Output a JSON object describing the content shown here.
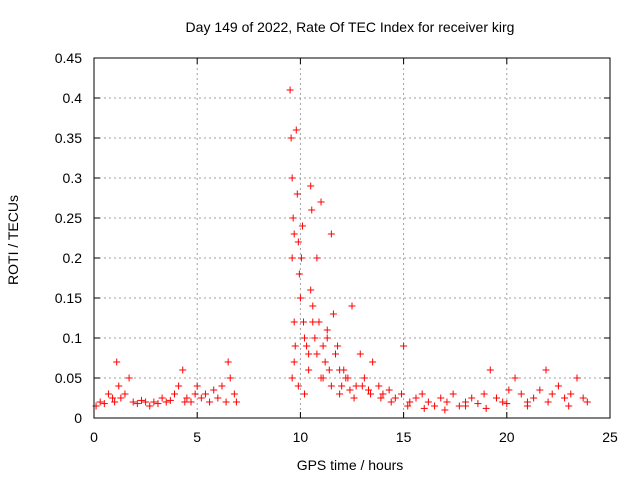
{
  "chart_data": {
    "type": "scatter",
    "title": "Day 149 of 2022, Rate Of TEC Index for receiver kirg",
    "xlabel": "GPS time / hours",
    "ylabel": "ROTI / TECUs",
    "xlim": [
      0,
      25
    ],
    "ylim": [
      0,
      0.45
    ],
    "xticks": [
      0,
      5,
      10,
      15,
      20,
      25
    ],
    "yticks": [
      0,
      0.05,
      0.1,
      0.15,
      0.2,
      0.25,
      0.3,
      0.35,
      0.4,
      0.45
    ],
    "xtick_labels": [
      "0",
      "5",
      "10",
      "15",
      "20",
      "25"
    ],
    "ytick_labels": [
      "0",
      "0.05",
      "0.1",
      "0.15",
      "0.2",
      "0.25",
      "0.3",
      "0.35",
      "0.4",
      "0.45"
    ],
    "grid": true,
    "marker": "+",
    "color": "#ff0000",
    "series": [
      {
        "name": "ROTI",
        "x": [
          0.1,
          0.3,
          0.5,
          0.7,
          0.9,
          1.0,
          1.1,
          1.2,
          1.3,
          1.5,
          1.7,
          1.9,
          2.1,
          2.3,
          2.5,
          2.7,
          2.9,
          3.1,
          3.3,
          3.5,
          3.7,
          3.9,
          4.1,
          4.3,
          4.4,
          4.5,
          4.7,
          4.9,
          5.0,
          5.2,
          5.4,
          5.6,
          5.8,
          6.0,
          6.2,
          6.4,
          6.5,
          6.6,
          6.8,
          6.9,
          9.5,
          9.55,
          9.6,
          9.6,
          9.65,
          9.7,
          9.7,
          9.75,
          9.8,
          9.85,
          9.9,
          9.95,
          10.0,
          10.05,
          10.1,
          10.15,
          10.2,
          10.3,
          10.4,
          10.5,
          10.5,
          10.55,
          10.6,
          10.7,
          10.8,
          10.9,
          11.0,
          11.0,
          11.1,
          11.2,
          11.3,
          11.4,
          11.5,
          11.6,
          11.7,
          11.8,
          11.9,
          12.0,
          12.1,
          12.3,
          12.5,
          12.7,
          12.9,
          13.1,
          13.3,
          13.5,
          13.8,
          14.0,
          14.3,
          14.6,
          14.9,
          15.0,
          15.3,
          15.6,
          15.9,
          16.2,
          16.5,
          16.8,
          17.1,
          17.4,
          17.7,
          18.0,
          18.3,
          18.6,
          18.9,
          19.2,
          19.5,
          19.8,
          20.1,
          20.4,
          20.7,
          21.0,
          21.3,
          21.6,
          21.9,
          22.2,
          22.5,
          22.8,
          23.1,
          23.4,
          23.7,
          23.9,
          9.6,
          9.7,
          9.9,
          10.2,
          10.4,
          10.6,
          10.8,
          11.1,
          11.3,
          11.5,
          11.7,
          11.9,
          12.2,
          12.4,
          12.6,
          13.0,
          13.4,
          13.9,
          14.4,
          15.2,
          16.0,
          17.0,
          18.0,
          19.0,
          20.0,
          21.0,
          22.0,
          23.0
        ],
        "y": [
          0.015,
          0.02,
          0.018,
          0.03,
          0.025,
          0.02,
          0.07,
          0.04,
          0.025,
          0.03,
          0.05,
          0.02,
          0.018,
          0.022,
          0.02,
          0.015,
          0.02,
          0.018,
          0.025,
          0.02,
          0.022,
          0.03,
          0.04,
          0.06,
          0.02,
          0.025,
          0.02,
          0.03,
          0.04,
          0.025,
          0.03,
          0.02,
          0.035,
          0.025,
          0.04,
          0.02,
          0.07,
          0.05,
          0.03,
          0.02,
          0.41,
          0.35,
          0.3,
          0.2,
          0.25,
          0.23,
          0.12,
          0.09,
          0.36,
          0.28,
          0.22,
          0.18,
          0.15,
          0.2,
          0.24,
          0.12,
          0.1,
          0.09,
          0.08,
          0.16,
          0.29,
          0.26,
          0.14,
          0.1,
          0.08,
          0.12,
          0.05,
          0.27,
          0.09,
          0.07,
          0.11,
          0.06,
          0.23,
          0.13,
          0.08,
          0.09,
          0.06,
          0.04,
          0.06,
          0.05,
          0.14,
          0.04,
          0.08,
          0.05,
          0.035,
          0.07,
          0.04,
          0.03,
          0.035,
          0.025,
          0.03,
          0.09,
          0.02,
          0.025,
          0.03,
          0.02,
          0.015,
          0.025,
          0.02,
          0.03,
          0.015,
          0.02,
          0.025,
          0.018,
          0.03,
          0.06,
          0.025,
          0.02,
          0.035,
          0.05,
          0.03,
          0.02,
          0.025,
          0.035,
          0.06,
          0.03,
          0.04,
          0.025,
          0.03,
          0.05,
          0.025,
          0.02,
          0.05,
          0.07,
          0.04,
          0.03,
          0.06,
          0.12,
          0.2,
          0.05,
          0.1,
          0.04,
          0.08,
          0.03,
          0.05,
          0.035,
          0.025,
          0.04,
          0.03,
          0.025,
          0.02,
          0.015,
          0.012,
          0.01,
          0.015,
          0.012,
          0.018,
          0.015,
          0.02,
          0.015
        ]
      }
    ]
  }
}
